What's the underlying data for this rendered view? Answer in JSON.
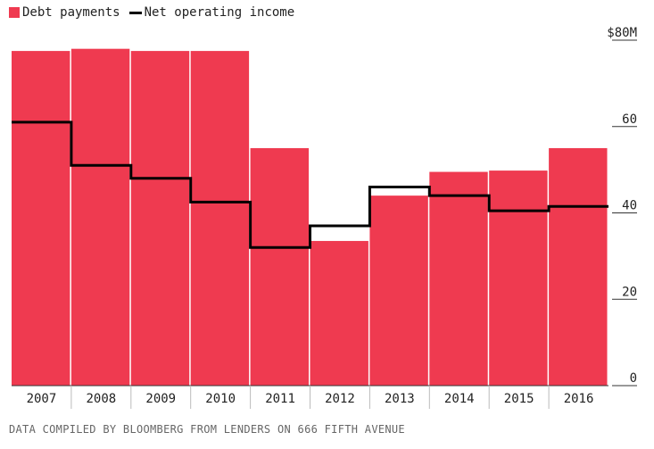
{
  "legend": {
    "bar_label": "Debt payments",
    "line_label": "Net operating income"
  },
  "source": "DATA COMPILED BY BLOOMBERG FROM LENDERS ON 666 FIFTH AVENUE",
  "colors": {
    "bar": "#ef3a50",
    "line": "#000000",
    "axis": "#333333"
  },
  "chart_data": {
    "type": "bar",
    "categories": [
      "2007",
      "2008",
      "2009",
      "2010",
      "2011",
      "2012",
      "2013",
      "2014",
      "2015",
      "2016"
    ],
    "series": [
      {
        "name": "Debt payments",
        "type": "bar",
        "values": [
          77.5,
          78,
          77.5,
          77.5,
          55,
          33.5,
          44,
          49.5,
          49.8,
          55
        ]
      },
      {
        "name": "Net operating income",
        "type": "step-line",
        "values": [
          61,
          51,
          48,
          42.5,
          32,
          37,
          46,
          44,
          40.5,
          41.5
        ]
      }
    ],
    "ylim": [
      0,
      80
    ],
    "yticks": [
      0,
      20,
      40,
      60,
      80
    ],
    "ytick_labels": [
      "0",
      "20",
      "40",
      "60",
      "$80M"
    ],
    "grid": false,
    "legend_position": "top-left"
  }
}
